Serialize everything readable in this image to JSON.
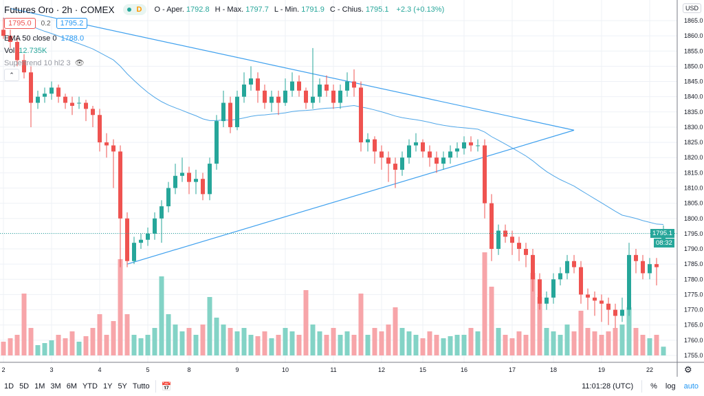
{
  "header": {
    "title": "Futures Oro · 2h · COMEX",
    "market_status_letter": "D",
    "open_label": "O - Aper.",
    "open": "1792.8",
    "high_label": "H - Max.",
    "high": "1797.7",
    "low_label": "L - Min.",
    "low": "1791.9",
    "close_label": "C - Chius.",
    "close": "1795.1",
    "change": "+2.3 (+0.13%)"
  },
  "trade": {
    "sell": "1795.0",
    "spread": "0.2",
    "buy": "1795.2"
  },
  "indicators": {
    "ema_label": "EMA 50 close 0",
    "ema_value": "1788.0",
    "vol_label": "Vol",
    "vol_value": "12.735K",
    "supertrend_label": "Supertrend 10 hl2 3"
  },
  "currency": "USD",
  "last_price_tag": "1795.1",
  "countdown": "08:32",
  "bottom": {
    "ranges": [
      "1D",
      "5D",
      "1M",
      "3M",
      "6M",
      "YTD",
      "1Y",
      "5Y",
      "Tutto"
    ],
    "clock": "11:01:28 (UTC)",
    "percent": "%",
    "log": "log",
    "auto": "auto"
  },
  "colors": {
    "up": "#26a69a",
    "down": "#ef5350",
    "up_vol": "#83d3c6",
    "down_vol": "#f7a5a9",
    "ema": "#4fa6e8",
    "trendline": "#3ea0ee",
    "grid": "#eef1f6"
  },
  "chart_data": {
    "type": "candlestick",
    "price_axis": {
      "ticks": [
        1865,
        1860,
        1855,
        1850,
        1845,
        1840,
        1835,
        1830,
        1825,
        1820,
        1815,
        1810,
        1805,
        1800,
        1795,
        1790,
        1785,
        1780,
        1775,
        1770,
        1765,
        1760,
        1755
      ],
      "range": [
        1753,
        1869
      ]
    },
    "time_axis": {
      "ticks": [
        {
          "label": "2",
          "candle": 0
        },
        {
          "label": "3",
          "candle": 7
        },
        {
          "label": "4",
          "candle": 14
        },
        {
          "label": "5",
          "candle": 21
        },
        {
          "label": "8",
          "candle": 27
        },
        {
          "label": "9",
          "candle": 34
        },
        {
          "label": "10",
          "candle": 41
        },
        {
          "label": "11",
          "candle": 48
        },
        {
          "label": "12",
          "candle": 55
        },
        {
          "label": "15",
          "candle": 61
        },
        {
          "label": "16",
          "candle": 67
        },
        {
          "label": "17",
          "candle": 74
        },
        {
          "label": "18",
          "candle": 80
        },
        {
          "label": "19",
          "candle": 87
        },
        {
          "label": "22",
          "candle": 94
        }
      ]
    },
    "candles_ohlcv": [
      [
        1862,
        1866,
        1859,
        1860,
        20
      ],
      [
        1860,
        1862,
        1856,
        1858,
        25
      ],
      [
        1858,
        1860,
        1850,
        1852,
        30
      ],
      [
        1852,
        1854,
        1846,
        1848,
        90
      ],
      [
        1848,
        1850,
        1830,
        1838,
        40
      ],
      [
        1838,
        1842,
        1836,
        1840,
        15
      ],
      [
        1840,
        1843,
        1838,
        1841,
        18
      ],
      [
        1841,
        1845,
        1839,
        1843,
        22
      ],
      [
        1843,
        1844,
        1838,
        1840,
        30
      ],
      [
        1840,
        1841,
        1836,
        1838,
        25
      ],
      [
        1838,
        1840,
        1834,
        1837,
        35
      ],
      [
        1838,
        1840,
        1836,
        1838,
        20
      ],
      [
        1838,
        1839,
        1832,
        1836,
        28
      ],
      [
        1836,
        1837,
        1830,
        1834,
        40
      ],
      [
        1834,
        1836,
        1822,
        1825,
        60
      ],
      [
        1825,
        1828,
        1820,
        1824,
        30
      ],
      [
        1824,
        1826,
        1810,
        1822,
        50
      ],
      [
        1822,
        1824,
        1784,
        1800,
        140
      ],
      [
        1800,
        1802,
        1784,
        1786,
        60
      ],
      [
        1786,
        1794,
        1785,
        1792,
        30
      ],
      [
        1792,
        1795,
        1790,
        1793,
        25
      ],
      [
        1793,
        1797,
        1791,
        1795,
        30
      ],
      [
        1795,
        1802,
        1793,
        1800,
        40
      ],
      [
        1800,
        1806,
        1792,
        1804,
        115
      ],
      [
        1804,
        1812,
        1802,
        1810,
        60
      ],
      [
        1810,
        1818,
        1808,
        1814,
        45
      ],
      [
        1814,
        1820,
        1812,
        1815,
        35
      ],
      [
        1815,
        1817,
        1808,
        1812,
        40
      ],
      [
        1812,
        1816,
        1808,
        1813,
        30
      ],
      [
        1813,
        1815,
        1806,
        1808,
        45
      ],
      [
        1808,
        1820,
        1806,
        1818,
        85
      ],
      [
        1818,
        1834,
        1816,
        1832,
        55
      ],
      [
        1832,
        1842,
        1830,
        1838,
        45
      ],
      [
        1838,
        1840,
        1828,
        1830,
        40
      ],
      [
        1830,
        1842,
        1829,
        1840,
        35
      ],
      [
        1840,
        1848,
        1838,
        1844,
        40
      ],
      [
        1844,
        1850,
        1842,
        1846,
        30
      ],
      [
        1846,
        1848,
        1838,
        1842,
        28
      ],
      [
        1842,
        1844,
        1836,
        1838,
        35
      ],
      [
        1838,
        1842,
        1835,
        1840,
        25
      ],
      [
        1840,
        1842,
        1834,
        1838,
        30
      ],
      [
        1838,
        1846,
        1837,
        1842,
        40
      ],
      [
        1842,
        1848,
        1840,
        1845,
        35
      ],
      [
        1845,
        1847,
        1840,
        1842,
        30
      ],
      [
        1842,
        1843,
        1836,
        1838,
        95
      ],
      [
        1838,
        1856,
        1836,
        1840,
        45
      ],
      [
        1840,
        1846,
        1838,
        1844,
        35
      ],
      [
        1844,
        1847,
        1840,
        1842,
        30
      ],
      [
        1842,
        1844,
        1836,
        1838,
        40
      ],
      [
        1838,
        1844,
        1836,
        1842,
        30
      ],
      [
        1842,
        1848,
        1840,
        1845,
        35
      ],
      [
        1845,
        1849,
        1840,
        1843,
        30
      ],
      [
        1843,
        1845,
        1822,
        1825,
        90
      ],
      [
        1825,
        1828,
        1822,
        1826,
        30
      ],
      [
        1826,
        1827,
        1818,
        1822,
        40
      ],
      [
        1822,
        1824,
        1816,
        1820,
        35
      ],
      [
        1820,
        1822,
        1812,
        1818,
        45
      ],
      [
        1818,
        1820,
        1810,
        1816,
        70
      ],
      [
        1816,
        1822,
        1814,
        1820,
        40
      ],
      [
        1820,
        1826,
        1818,
        1824,
        35
      ],
      [
        1824,
        1828,
        1822,
        1825,
        30
      ],
      [
        1825,
        1826,
        1820,
        1822,
        25
      ],
      [
        1822,
        1824,
        1817,
        1820,
        35
      ],
      [
        1820,
        1822,
        1815,
        1818,
        30
      ],
      [
        1818,
        1822,
        1816,
        1820,
        25
      ],
      [
        1820,
        1824,
        1818,
        1822,
        28
      ],
      [
        1822,
        1825,
        1820,
        1823,
        30
      ],
      [
        1823,
        1827,
        1821,
        1825,
        30
      ],
      [
        1825,
        1827,
        1822,
        1824,
        40
      ],
      [
        1824,
        1826,
        1822,
        1824,
        35
      ],
      [
        1824,
        1826,
        1800,
        1805,
        150
      ],
      [
        1805,
        1808,
        1786,
        1790,
        100
      ],
      [
        1790,
        1798,
        1788,
        1796,
        40
      ],
      [
        1796,
        1798,
        1792,
        1794,
        30
      ],
      [
        1794,
        1796,
        1788,
        1792,
        25
      ],
      [
        1792,
        1794,
        1786,
        1790,
        35
      ],
      [
        1790,
        1792,
        1784,
        1788,
        30
      ],
      [
        1788,
        1790,
        1776,
        1780,
        120
      ],
      [
        1780,
        1782,
        1770,
        1772,
        85
      ],
      [
        1772,
        1776,
        1770,
        1774,
        40
      ],
      [
        1774,
        1782,
        1772,
        1780,
        35
      ],
      [
        1780,
        1784,
        1778,
        1782,
        30
      ],
      [
        1782,
        1788,
        1780,
        1786,
        45
      ],
      [
        1786,
        1788,
        1782,
        1784,
        35
      ],
      [
        1784,
        1786,
        1772,
        1775,
        65
      ],
      [
        1775,
        1777,
        1770,
        1774,
        40
      ],
      [
        1774,
        1776,
        1768,
        1773,
        35
      ],
      [
        1773,
        1775,
        1766,
        1772,
        30
      ],
      [
        1772,
        1774,
        1765,
        1770,
        35
      ],
      [
        1770,
        1772,
        1764,
        1768,
        40
      ],
      [
        1768,
        1774,
        1766,
        1770,
        45
      ],
      [
        1770,
        1792,
        1768,
        1788,
        70
      ],
      [
        1788,
        1790,
        1782,
        1786,
        40
      ],
      [
        1786,
        1788,
        1780,
        1782,
        30
      ],
      [
        1782,
        1787,
        1780,
        1785,
        25
      ],
      [
        1785,
        1787,
        1778,
        1784,
        30
      ],
      [
        1792.8,
        1797.7,
        1791.9,
        1795.1,
        12.735
      ]
    ],
    "ema50_start": 1866,
    "trendlines": [
      {
        "from": {
          "candle": 1,
          "price": 1869
        },
        "to": {
          "candle": 83,
          "price": 1829
        }
      },
      {
        "from": {
          "candle": 18,
          "price": 1785
        },
        "to": {
          "candle": 83,
          "price": 1829
        }
      }
    ],
    "last_price": 1795.1
  }
}
